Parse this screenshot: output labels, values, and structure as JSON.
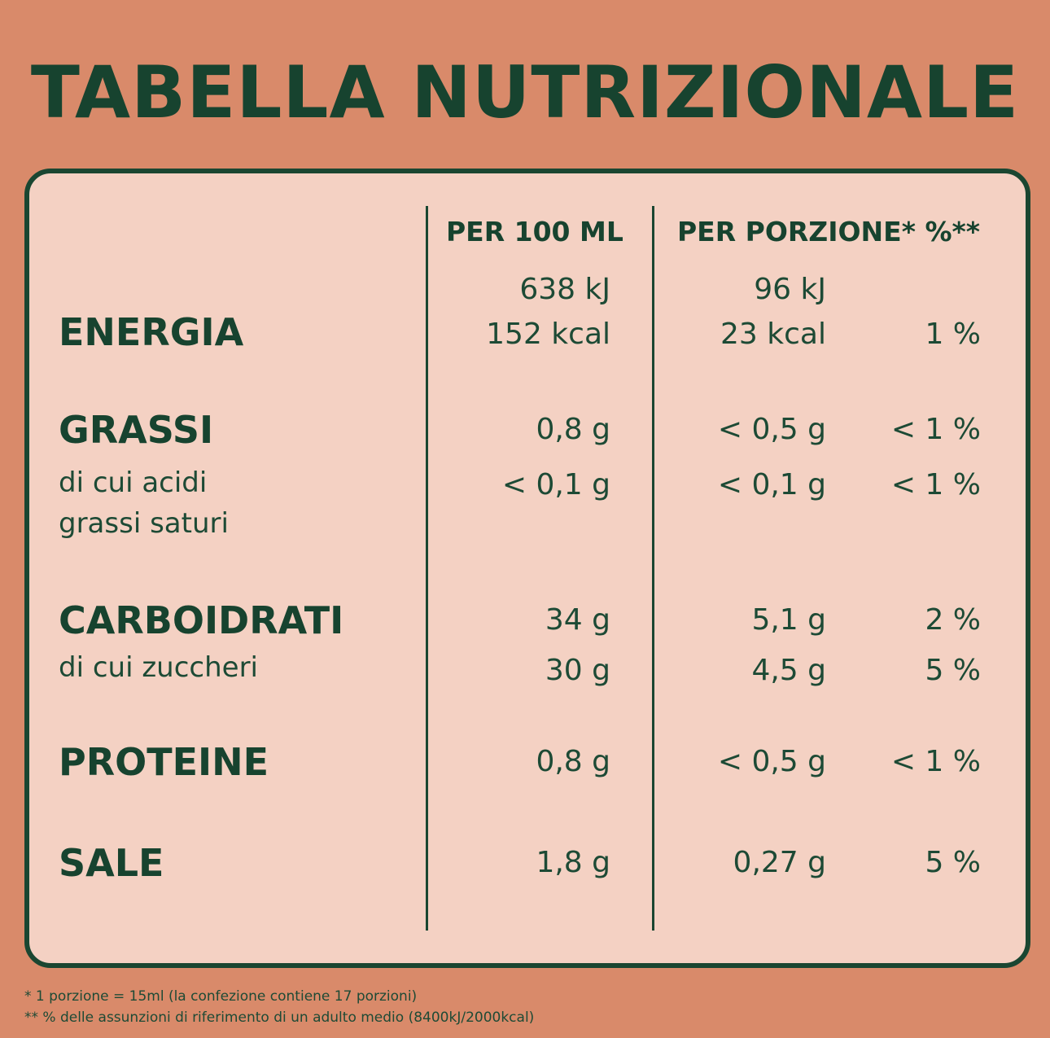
{
  "title": "TABELLA NUTRIZIONALE",
  "headers": {
    "per100": "PER 100 ML",
    "porzione": "PER PORZIONE* %**"
  },
  "energia": {
    "label": "ENERGIA",
    "per100_kj": "638 kJ",
    "per100_kcal": "152 kcal",
    "porzione_kj": "96 kJ",
    "porzione_kcal": "23 kcal",
    "pct": "1 %"
  },
  "grassi": {
    "label": "GRASSI",
    "per100": "0,8 g",
    "porzione": "< 0,5 g",
    "pct": "< 1 %"
  },
  "saturi": {
    "label_line1": "di cui acidi",
    "label_line2": "grassi saturi",
    "per100": "< 0,1 g",
    "porzione": "< 0,1 g",
    "pct": "< 1 %"
  },
  "carboidrati": {
    "label": "CARBOIDRATI",
    "per100": "34 g",
    "porzione": "5,1 g",
    "pct": "2 %"
  },
  "zuccheri": {
    "label": "di cui zuccheri",
    "per100": "30 g",
    "porzione": "4,5 g",
    "pct": "5 %"
  },
  "proteine": {
    "label": "PROTEINE",
    "per100": "0,8 g",
    "porzione": "< 0,5 g",
    "pct": "< 1 %"
  },
  "sale": {
    "label": "SALE",
    "per100": "1,8 g",
    "porzione": "0,27 g",
    "pct": "5 %"
  },
  "footnotes": {
    "line1": "* 1 porzione = 15ml (la confezione contiene 17 porzioni)",
    "line2": "** % delle assunzioni di riferimento di un adulto medio (8400kJ/2000kcal)"
  }
}
